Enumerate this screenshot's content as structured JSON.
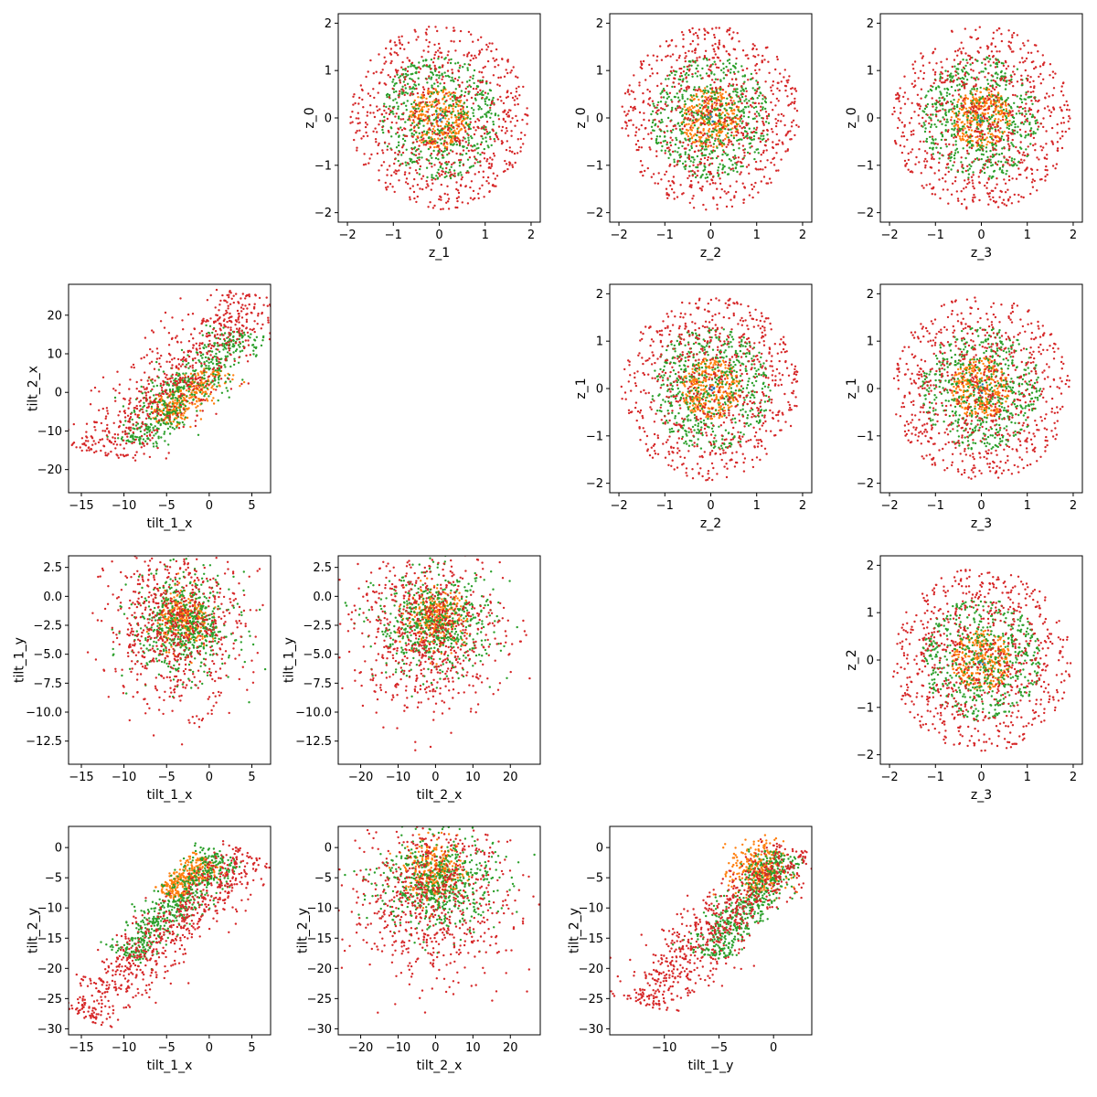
{
  "figure": {
    "description_free": true,
    "colors": {
      "blue": "#1f77b4",
      "orange": "#ff7f0e",
      "green": "#2ca02c",
      "red": "#d62728"
    }
  },
  "chart_data": [
    {
      "type": "scatter",
      "panel": "r0c1",
      "xlabel": "z_1",
      "ylabel": "z_0",
      "xlim": [
        -2.2,
        2.2
      ],
      "ylim": [
        -2.2,
        2.2
      ],
      "xticks": [
        -2,
        -1,
        0,
        1,
        2
      ],
      "xtick_labels": [
        "−2",
        "−1",
        "0",
        "1",
        "2"
      ],
      "yticks": [
        -2,
        -1,
        0,
        1,
        2
      ],
      "ytick_labels": [
        "−2",
        "−1",
        "0",
        "1",
        "2"
      ],
      "series": [
        {
          "color": "#1f77b4",
          "shape": "disk",
          "center": [
            0,
            0
          ],
          "radius": 0.1,
          "count": 10
        },
        {
          "color": "#ff7f0e",
          "shape": "disk",
          "center": [
            0,
            0
          ],
          "radius": 0.65,
          "count": 300
        },
        {
          "color": "#2ca02c",
          "shape": "disk",
          "center": [
            0,
            0
          ],
          "radius": 1.3,
          "count": 550
        },
        {
          "color": "#d62728",
          "shape": "disk",
          "center": [
            0,
            0
          ],
          "radius": 1.95,
          "count": 750
        }
      ]
    },
    {
      "type": "scatter",
      "panel": "r0c2",
      "xlabel": "z_2",
      "ylabel": "z_0",
      "xlim": [
        -2.2,
        2.2
      ],
      "ylim": [
        -2.2,
        2.2
      ],
      "xticks": [
        -2,
        -1,
        0,
        1,
        2
      ],
      "xtick_labels": [
        "−2",
        "−1",
        "0",
        "1",
        "2"
      ],
      "yticks": [
        -2,
        -1,
        0,
        1,
        2
      ],
      "ytick_labels": [
        "−2",
        "−1",
        "0",
        "1",
        "2"
      ],
      "series": [
        {
          "color": "#1f77b4",
          "shape": "disk",
          "center": [
            0,
            0
          ],
          "radius": 0.1,
          "count": 10
        },
        {
          "color": "#ff7f0e",
          "shape": "disk",
          "center": [
            0,
            0
          ],
          "radius": 0.65,
          "count": 300
        },
        {
          "color": "#2ca02c",
          "shape": "disk",
          "center": [
            0,
            0
          ],
          "radius": 1.3,
          "count": 550
        },
        {
          "color": "#d62728",
          "shape": "disk",
          "center": [
            0,
            0
          ],
          "radius": 1.95,
          "count": 750
        }
      ]
    },
    {
      "type": "scatter",
      "panel": "r0c3",
      "xlabel": "z_3",
      "ylabel": "z_0",
      "xlim": [
        -2.2,
        2.2
      ],
      "ylim": [
        -2.2,
        2.2
      ],
      "xticks": [
        -2,
        -1,
        0,
        1,
        2
      ],
      "xtick_labels": [
        "−2",
        "−1",
        "0",
        "1",
        "2"
      ],
      "yticks": [
        -2,
        -1,
        0,
        1,
        2
      ],
      "ytick_labels": [
        "−2",
        "−1",
        "0",
        "1",
        "2"
      ],
      "series": [
        {
          "color": "#1f77b4",
          "shape": "disk",
          "center": [
            0,
            0
          ],
          "radius": 0.1,
          "count": 10
        },
        {
          "color": "#ff7f0e",
          "shape": "disk",
          "center": [
            0,
            0
          ],
          "radius": 0.65,
          "count": 300
        },
        {
          "color": "#2ca02c",
          "shape": "disk",
          "center": [
            0,
            0
          ],
          "radius": 1.3,
          "count": 550
        },
        {
          "color": "#d62728",
          "shape": "disk",
          "center": [
            0,
            0
          ],
          "radius": 1.95,
          "count": 750
        }
      ]
    },
    {
      "type": "scatter",
      "panel": "r1c0",
      "xlabel": "tilt_1_x",
      "ylabel": "tilt_2_x",
      "xlim": [
        -16.5,
        7.2
      ],
      "ylim": [
        -26,
        28
      ],
      "xticks": [
        -15,
        -10,
        -5,
        0,
        5
      ],
      "xtick_labels": [
        "−15",
        "−10",
        "−5",
        "0",
        "5"
      ],
      "yticks": [
        -20,
        -10,
        0,
        10,
        20
      ],
      "ytick_labels": [
        "−20",
        "−10",
        "0",
        "10",
        "20"
      ],
      "series": [
        {
          "color": "#ff7f0e",
          "shape": "band",
          "from": [
            -5.5,
            -8
          ],
          "to": [
            0.5,
            6
          ],
          "spread": 3,
          "count": 300
        },
        {
          "color": "#2ca02c",
          "shape": "band",
          "from": [
            -9,
            -13
          ],
          "to": [
            4,
            16
          ],
          "spread": 4,
          "count": 550
        },
        {
          "color": "#d62728",
          "shape": "band",
          "from": [
            -13,
            -16
          ],
          "to": [
            6,
            25
          ],
          "spread": 6,
          "count": 700
        }
      ]
    },
    {
      "type": "scatter",
      "panel": "r1c2",
      "xlabel": "z_2",
      "ylabel": "z_1",
      "xlim": [
        -2.2,
        2.2
      ],
      "ylim": [
        -2.2,
        2.2
      ],
      "xticks": [
        -2,
        -1,
        0,
        1,
        2
      ],
      "xtick_labels": [
        "−2",
        "−1",
        "0",
        "1",
        "2"
      ],
      "yticks": [
        -2,
        -1,
        0,
        1,
        2
      ],
      "ytick_labels": [
        "−2",
        "−1",
        "0",
        "1",
        "2"
      ],
      "series": [
        {
          "color": "#1f77b4",
          "shape": "disk",
          "center": [
            0,
            0
          ],
          "radius": 0.1,
          "count": 10
        },
        {
          "color": "#ff7f0e",
          "shape": "disk",
          "center": [
            0,
            0
          ],
          "radius": 0.65,
          "count": 300
        },
        {
          "color": "#2ca02c",
          "shape": "disk",
          "center": [
            0,
            0
          ],
          "radius": 1.3,
          "count": 550
        },
        {
          "color": "#d62728",
          "shape": "disk",
          "center": [
            0,
            0
          ],
          "radius": 1.95,
          "count": 750
        }
      ]
    },
    {
      "type": "scatter",
      "panel": "r1c3",
      "xlabel": "z_3",
      "ylabel": "z_1",
      "xlim": [
        -2.2,
        2.2
      ],
      "ylim": [
        -2.2,
        2.2
      ],
      "xticks": [
        -2,
        -1,
        0,
        1,
        2
      ],
      "xtick_labels": [
        "−2",
        "−1",
        "0",
        "1",
        "2"
      ],
      "yticks": [
        -2,
        -1,
        0,
        1,
        2
      ],
      "ytick_labels": [
        "−2",
        "−1",
        "0",
        "1",
        "2"
      ],
      "series": [
        {
          "color": "#1f77b4",
          "shape": "disk",
          "center": [
            0,
            0
          ],
          "radius": 0.1,
          "count": 10
        },
        {
          "color": "#ff7f0e",
          "shape": "disk",
          "center": [
            0,
            0
          ],
          "radius": 0.65,
          "count": 300
        },
        {
          "color": "#2ca02c",
          "shape": "disk",
          "center": [
            0,
            0
          ],
          "radius": 1.3,
          "count": 550
        },
        {
          "color": "#d62728",
          "shape": "disk",
          "center": [
            0,
            0
          ],
          "radius": 1.95,
          "count": 750
        }
      ]
    },
    {
      "type": "scatter",
      "panel": "r2c0",
      "xlabel": "tilt_1_x",
      "ylabel": "tilt_1_y",
      "xlim": [
        -16.5,
        7.2
      ],
      "ylim": [
        -14.5,
        3.5
      ],
      "xticks": [
        -15,
        -10,
        -5,
        0,
        5
      ],
      "xtick_labels": [
        "−15",
        "−10",
        "−5",
        "0",
        "5"
      ],
      "yticks": [
        2.5,
        0,
        -2.5,
        -5,
        -7.5,
        -10,
        -12.5
      ],
      "ytick_labels": [
        "2.5",
        "0.0",
        "−2.5",
        "−5.0",
        "−7.5",
        "−10.0",
        "−12.5"
      ],
      "series": [
        {
          "color": "#ff7f0e",
          "shape": "blob",
          "center": [
            -3,
            -2
          ],
          "spread": [
            1.5,
            1.2
          ],
          "count": 300
        },
        {
          "color": "#2ca02c",
          "shape": "blob",
          "center": [
            -3,
            -2.5
          ],
          "spread": [
            3,
            2.2
          ],
          "count": 550
        },
        {
          "color": "#d62728",
          "shape": "blob",
          "center": [
            -4,
            -2.5
          ],
          "spread": [
            4,
            3.5
          ],
          "count": 700
        }
      ]
    },
    {
      "type": "scatter",
      "panel": "r2c1",
      "xlabel": "tilt_2_x",
      "ylabel": "tilt_1_y",
      "xlim": [
        -26,
        28
      ],
      "ylim": [
        -14.5,
        3.5
      ],
      "xticks": [
        -20,
        -10,
        0,
        10,
        20
      ],
      "xtick_labels": [
        "−20",
        "−10",
        "0",
        "10",
        "20"
      ],
      "yticks": [
        2.5,
        0,
        -2.5,
        -5,
        -7.5,
        -10,
        -12.5
      ],
      "ytick_labels": [
        "2.5",
        "0.0",
        "−2.5",
        "−5.0",
        "−7.5",
        "−10.0",
        "−12.5"
      ],
      "series": [
        {
          "color": "#ff7f0e",
          "shape": "blob",
          "center": [
            0,
            -1.8
          ],
          "spread": [
            4,
            1.2
          ],
          "count": 300
        },
        {
          "color": "#2ca02c",
          "shape": "blob",
          "center": [
            0,
            -2.5
          ],
          "spread": [
            8,
            2.2
          ],
          "count": 550
        },
        {
          "color": "#d62728",
          "shape": "blob",
          "center": [
            -2,
            -3
          ],
          "spread": [
            10,
            3.5
          ],
          "count": 700
        }
      ]
    },
    {
      "type": "scatter",
      "panel": "r2c3",
      "xlabel": "z_3",
      "ylabel": "z_2",
      "xlim": [
        -2.2,
        2.2
      ],
      "ylim": [
        -2.2,
        2.2
      ],
      "xticks": [
        -2,
        -1,
        0,
        1,
        2
      ],
      "xtick_labels": [
        "−2",
        "−1",
        "0",
        "1",
        "2"
      ],
      "yticks": [
        -2,
        -1,
        0,
        1,
        2
      ],
      "ytick_labels": [
        "−2",
        "−1",
        "0",
        "1",
        "2"
      ],
      "series": [
        {
          "color": "#1f77b4",
          "shape": "disk",
          "center": [
            0,
            0
          ],
          "radius": 0.1,
          "count": 10
        },
        {
          "color": "#ff7f0e",
          "shape": "disk",
          "center": [
            0,
            0
          ],
          "radius": 0.65,
          "count": 300
        },
        {
          "color": "#2ca02c",
          "shape": "disk",
          "center": [
            0,
            0
          ],
          "radius": 1.3,
          "count": 550
        },
        {
          "color": "#d62728",
          "shape": "disk",
          "center": [
            0,
            0
          ],
          "radius": 1.95,
          "count": 750
        }
      ]
    },
    {
      "type": "scatter",
      "panel": "r3c0",
      "xlabel": "tilt_1_x",
      "ylabel": "tilt_2_y",
      "xlim": [
        -16.5,
        7.2
      ],
      "ylim": [
        -31,
        3.5
      ],
      "xticks": [
        -15,
        -10,
        -5,
        0,
        5
      ],
      "xtick_labels": [
        "−15",
        "−10",
        "−5",
        "0",
        "5"
      ],
      "yticks": [
        0,
        -5,
        -10,
        -15,
        -20,
        -25,
        -30
      ],
      "ytick_labels": [
        "0",
        "−5",
        "−10",
        "−15",
        "−20",
        "−25",
        "−30"
      ],
      "series": [
        {
          "color": "#ff7f0e",
          "shape": "band",
          "from": [
            -5,
            -8
          ],
          "to": [
            0,
            -2
          ],
          "spread": 2,
          "count": 300
        },
        {
          "color": "#2ca02c",
          "shape": "band",
          "from": [
            -10,
            -18
          ],
          "to": [
            2,
            -1
          ],
          "spread": 3,
          "count": 550
        },
        {
          "color": "#d62728",
          "shape": "band",
          "from": [
            -15,
            -28
          ],
          "to": [
            5,
            -1
          ],
          "spread": 4,
          "count": 700
        }
      ]
    },
    {
      "type": "scatter",
      "panel": "r3c1",
      "xlabel": "tilt_2_x",
      "ylabel": "tilt_2_y",
      "xlim": [
        -26,
        28
      ],
      "ylim": [
        -31,
        3.5
      ],
      "xticks": [
        -20,
        -10,
        0,
        10,
        20
      ],
      "xtick_labels": [
        "−20",
        "−10",
        "0",
        "10",
        "20"
      ],
      "yticks": [
        0,
        -5,
        -10,
        -15,
        -20,
        -25,
        -30
      ],
      "ytick_labels": [
        "0",
        "−5",
        "−10",
        "−15",
        "−20",
        "−25",
        "−30"
      ],
      "series": [
        {
          "color": "#ff7f0e",
          "shape": "blob",
          "center": [
            0,
            -4
          ],
          "spread": [
            4,
            2.5
          ],
          "count": 300
        },
        {
          "color": "#2ca02c",
          "shape": "blob",
          "center": [
            0,
            -6
          ],
          "spread": [
            8,
            4
          ],
          "count": 550
        },
        {
          "color": "#d62728",
          "shape": "blob",
          "center": [
            -1,
            -8
          ],
          "spread": [
            11,
            7
          ],
          "count": 700
        }
      ]
    },
    {
      "type": "scatter",
      "panel": "r3c2",
      "xlabel": "tilt_1_y",
      "ylabel": "tilt_2_y",
      "xlim": [
        -15,
        3.5
      ],
      "ylim": [
        -31,
        3.5
      ],
      "xticks": [
        -10,
        -5,
        0
      ],
      "xtick_labels": [
        "−10",
        "−5",
        "0"
      ],
      "yticks": [
        0,
        -5,
        -10,
        -15,
        -20,
        -25,
        -30
      ],
      "ytick_labels": [
        "0",
        "−5",
        "−10",
        "−15",
        "−20",
        "−25",
        "−30"
      ],
      "series": [
        {
          "color": "#ff7f0e",
          "shape": "blob",
          "center": [
            -1.5,
            -4
          ],
          "spread": [
            1.2,
            2.5
          ],
          "count": 300
        },
        {
          "color": "#2ca02c",
          "shape": "band",
          "from": [
            -6,
            -18
          ],
          "to": [
            1,
            -1
          ],
          "spread": 2.5,
          "count": 550
        },
        {
          "color": "#d62728",
          "shape": "band",
          "from": [
            -12,
            -26
          ],
          "to": [
            2,
            0
          ],
          "spread": 3.5,
          "count": 700
        }
      ]
    }
  ]
}
